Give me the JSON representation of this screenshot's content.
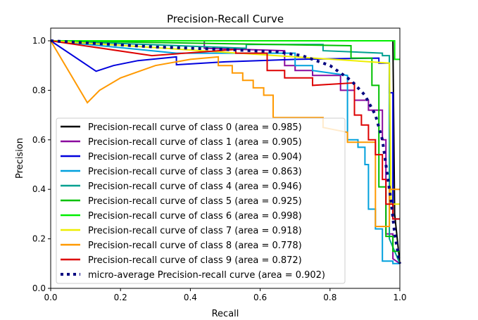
{
  "chart_data": {
    "type": "line",
    "title": "Precision-Recall Curve",
    "xlabel": "Recall",
    "ylabel": "Precision",
    "xlim": [
      0,
      1.0
    ],
    "ylim": [
      0,
      1.05
    ],
    "xticks": [
      "0.0",
      "0.2",
      "0.4",
      "0.6",
      "0.8",
      "1.0"
    ],
    "yticks": [
      "0.0",
      "0.2",
      "0.4",
      "0.6",
      "0.8",
      "1.0"
    ],
    "grid": false,
    "legend_position": "lower-left",
    "series": [
      {
        "name": "Precision-recall curve of class 0 (area = 0.985)",
        "color": "#000000",
        "style": "solid",
        "points": [
          [
            0,
            1
          ],
          [
            0.98,
            1
          ],
          [
            0.985,
            0.3
          ],
          [
            1,
            0.1
          ]
        ]
      },
      {
        "name": "Precision-recall curve of class 1 (area = 0.905)",
        "color": "#8a0a9e",
        "style": "solid",
        "points": [
          [
            0,
            1
          ],
          [
            0.44,
            1
          ],
          [
            0.44,
            0.97
          ],
          [
            0.67,
            0.96
          ],
          [
            0.67,
            0.9
          ],
          [
            0.7,
            0.9
          ],
          [
            0.7,
            0.88
          ],
          [
            0.75,
            0.88
          ],
          [
            0.75,
            0.86
          ],
          [
            0.83,
            0.86
          ],
          [
            0.83,
            0.8
          ],
          [
            0.87,
            0.8
          ],
          [
            0.87,
            0.76
          ],
          [
            0.91,
            0.76
          ],
          [
            0.91,
            0.72
          ],
          [
            0.95,
            0.72
          ],
          [
            0.95,
            0.6
          ],
          [
            0.96,
            0.6
          ],
          [
            0.96,
            0.22
          ],
          [
            0.98,
            0.22
          ],
          [
            0.98,
            0.12
          ],
          [
            1,
            0.1
          ]
        ]
      },
      {
        "name": "Precision-recall curve of class 2 (area = 0.904)",
        "color": "#0000dd",
        "style": "solid",
        "points": [
          [
            0,
            1
          ],
          [
            0.13,
            0.877
          ],
          [
            0.18,
            0.9
          ],
          [
            0.25,
            0.92
          ],
          [
            0.36,
            0.935
          ],
          [
            0.36,
            0.903
          ],
          [
            0.5,
            0.915
          ],
          [
            0.7,
            0.925
          ],
          [
            0.94,
            0.93
          ],
          [
            0.94,
            0.91
          ],
          [
            0.97,
            0.91
          ],
          [
            0.97,
            0.79
          ],
          [
            0.98,
            0.79
          ],
          [
            0.98,
            0.28
          ],
          [
            1,
            0.28
          ]
        ]
      },
      {
        "name": "Precision-recall curve of class 3 (area = 0.863)",
        "color": "#00a0dd",
        "style": "solid",
        "points": [
          [
            0,
            1
          ],
          [
            0.36,
            0.95
          ],
          [
            0.7,
            0.95
          ],
          [
            0.7,
            0.9
          ],
          [
            0.75,
            0.9
          ],
          [
            0.75,
            0.88
          ],
          [
            0.85,
            0.86
          ],
          [
            0.85,
            0.6
          ],
          [
            0.88,
            0.6
          ],
          [
            0.88,
            0.57
          ],
          [
            0.9,
            0.57
          ],
          [
            0.9,
            0.5
          ],
          [
            0.91,
            0.5
          ],
          [
            0.91,
            0.32
          ],
          [
            0.93,
            0.32
          ],
          [
            0.93,
            0.24
          ],
          [
            0.95,
            0.24
          ],
          [
            0.95,
            0.11
          ],
          [
            0.98,
            0.11
          ],
          [
            0.98,
            0.1
          ],
          [
            1,
            0.1
          ]
        ]
      },
      {
        "name": "Precision-recall curve of class 4 (area = 0.946)",
        "color": "#00a090",
        "style": "solid",
        "points": [
          [
            0,
            1
          ],
          [
            0.56,
            0.97
          ],
          [
            0.56,
            0.985
          ],
          [
            0.78,
            0.985
          ],
          [
            0.78,
            0.96
          ],
          [
            0.95,
            0.95
          ],
          [
            0.95,
            0.94
          ],
          [
            0.97,
            0.94
          ],
          [
            0.97,
            0.2
          ],
          [
            1,
            0.1
          ]
        ]
      },
      {
        "name": "Precision-recall curve of class 5 (area = 0.925)",
        "color": "#00c000",
        "style": "solid",
        "points": [
          [
            0,
            1
          ],
          [
            0.86,
            0.98
          ],
          [
            0.86,
            0.93
          ],
          [
            0.92,
            0.93
          ],
          [
            0.92,
            0.82
          ],
          [
            0.94,
            0.82
          ],
          [
            0.94,
            0.41
          ],
          [
            0.96,
            0.41
          ],
          [
            0.96,
            0.21
          ],
          [
            0.98,
            0.21
          ],
          [
            0.98,
            0.15
          ],
          [
            1,
            0.15
          ]
        ]
      },
      {
        "name": "Precision-recall curve of class 6 (area = 0.998)",
        "color": "#00ee00",
        "style": "solid",
        "points": [
          [
            0,
            1
          ],
          [
            0.985,
            1
          ],
          [
            0.985,
            0.925
          ],
          [
            1,
            0.925
          ]
        ]
      },
      {
        "name": "Precision-recall curve of class 7 (area = 0.918)",
        "color": "#eeee00",
        "style": "solid",
        "points": [
          [
            0,
            1
          ],
          [
            0.97,
            0.91
          ],
          [
            0.975,
            0.34
          ],
          [
            1,
            0.34
          ]
        ]
      },
      {
        "name": "Precision-recall curve of class 8 (area = 0.778)",
        "color": "#ff9900",
        "style": "solid",
        "points": [
          [
            0,
            1
          ],
          [
            0.105,
            0.75
          ],
          [
            0.14,
            0.8
          ],
          [
            0.2,
            0.85
          ],
          [
            0.3,
            0.9
          ],
          [
            0.4,
            0.925
          ],
          [
            0.48,
            0.935
          ],
          [
            0.48,
            0.9
          ],
          [
            0.52,
            0.9
          ],
          [
            0.52,
            0.87
          ],
          [
            0.55,
            0.87
          ],
          [
            0.55,
            0.84
          ],
          [
            0.58,
            0.84
          ],
          [
            0.58,
            0.81
          ],
          [
            0.61,
            0.81
          ],
          [
            0.61,
            0.78
          ],
          [
            0.637,
            0.78
          ],
          [
            0.637,
            0.69
          ],
          [
            0.68,
            0.69
          ],
          [
            0.78,
            0.69
          ],
          [
            0.78,
            0.65
          ],
          [
            0.85,
            0.63
          ],
          [
            0.85,
            0.59
          ],
          [
            0.93,
            0.59
          ],
          [
            0.93,
            0.25
          ],
          [
            0.97,
            0.25
          ],
          [
            0.97,
            0.4
          ],
          [
            1,
            0.4
          ]
        ]
      },
      {
        "name": "Precision-recall curve of class 9 (area = 0.872)",
        "color": "#dd0000",
        "style": "solid",
        "points": [
          [
            0,
            1
          ],
          [
            0.29,
            0.94
          ],
          [
            0.53,
            0.965
          ],
          [
            0.53,
            0.95
          ],
          [
            0.62,
            0.95
          ],
          [
            0.62,
            0.88
          ],
          [
            0.67,
            0.88
          ],
          [
            0.67,
            0.85
          ],
          [
            0.75,
            0.85
          ],
          [
            0.75,
            0.82
          ],
          [
            0.87,
            0.83
          ],
          [
            0.87,
            0.7
          ],
          [
            0.89,
            0.7
          ],
          [
            0.89,
            0.66
          ],
          [
            0.91,
            0.66
          ],
          [
            0.91,
            0.6
          ],
          [
            0.93,
            0.6
          ],
          [
            0.93,
            0.54
          ],
          [
            0.95,
            0.54
          ],
          [
            0.95,
            0.44
          ],
          [
            0.96,
            0.44
          ],
          [
            0.96,
            0.34
          ],
          [
            0.98,
            0.34
          ],
          [
            0.98,
            0.28
          ],
          [
            1,
            0.28
          ]
        ]
      },
      {
        "name": "micro-average Precision-recall curve (area = 0.902)",
        "color": "#000080",
        "style": "dotted",
        "points": [
          [
            0,
            1
          ],
          [
            0.3,
            0.975
          ],
          [
            0.5,
            0.965
          ],
          [
            0.65,
            0.955
          ],
          [
            0.72,
            0.94
          ],
          [
            0.8,
            0.9
          ],
          [
            0.86,
            0.84
          ],
          [
            0.9,
            0.78
          ],
          [
            0.93,
            0.7
          ],
          [
            0.95,
            0.6
          ],
          [
            0.96,
            0.5
          ],
          [
            0.975,
            0.35
          ],
          [
            0.985,
            0.22
          ],
          [
            1,
            0.1
          ]
        ]
      }
    ]
  }
}
